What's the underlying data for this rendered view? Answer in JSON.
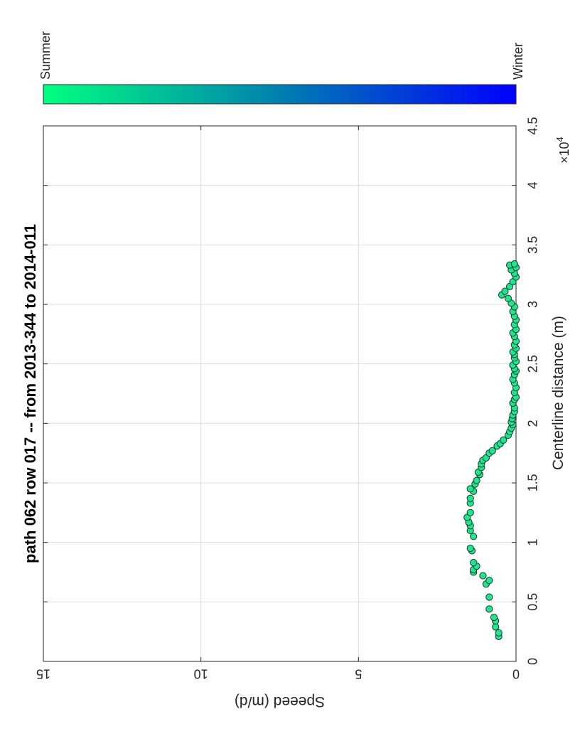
{
  "chart_data": {
    "type": "scatter",
    "orientation": "rotated 90° counter-clockwise (x axis runs bottom-to-top, y axis runs right-to-left)",
    "title": "path 062 row 017  -- from 2013-344 to 2014-011",
    "xlabel": "Centerline distance (m)",
    "ylabel": "Speeed (m/d)",
    "x_exponent_label": "×10",
    "x_exponent": "4",
    "xlim": [
      0,
      45000
    ],
    "ylim": [
      0,
      15
    ],
    "x_ticks": [
      0,
      5000,
      10000,
      15000,
      20000,
      25000,
      30000,
      35000,
      40000,
      45000
    ],
    "x_tick_labels": [
      "0",
      "0.5",
      "1",
      "1.5",
      "2",
      "2.5",
      "3",
      "3.5",
      "4",
      "4.5"
    ],
    "y_ticks": [
      0,
      5,
      10,
      15
    ],
    "y_tick_labels": [
      "0",
      "5",
      "10",
      "15"
    ],
    "grid": true,
    "marker_color": "#1fe68e",
    "marker_edge": "#1a3a2a",
    "colorbar": {
      "start_label": "Summer",
      "end_label": "Winter",
      "start_color": "#00ff80",
      "mid_color": "#0080b0",
      "end_color": "#0000ff"
    },
    "x": [
      2100,
      2400,
      2900,
      3400,
      3700,
      4400,
      5400,
      6500,
      6800,
      7200,
      7500,
      7700,
      8000,
      8300,
      9300,
      9500,
      10500,
      11000,
      11400,
      11700,
      12100,
      12500,
      13300,
      13700,
      14300,
      14500,
      14900,
      15200,
      15700,
      15900,
      16300,
      16600,
      16900,
      17100,
      17500,
      17700,
      18100,
      18300,
      18600,
      19000,
      19300,
      19600,
      19900,
      20100,
      20400,
      20700,
      21000,
      21300,
      21700,
      22000,
      22200,
      22600,
      23000,
      23400,
      23700,
      24100,
      24400,
      24600,
      24900,
      25200,
      25500,
      25800,
      26000,
      26300,
      26600,
      26900,
      27300,
      27600,
      27900,
      28300,
      28700,
      29000,
      29400,
      29800,
      30100,
      30500,
      30800,
      31100,
      31500,
      31900,
      32300,
      32600,
      32900,
      33100,
      33300,
      33400
    ],
    "y": [
      0.55,
      0.55,
      0.65,
      0.65,
      0.7,
      0.85,
      0.85,
      0.95,
      0.85,
      1.05,
      1.35,
      1.35,
      1.25,
      1.35,
      1.4,
      1.45,
      1.35,
      1.45,
      1.45,
      1.5,
      1.55,
      1.45,
      1.45,
      1.45,
      1.35,
      1.45,
      1.3,
      1.25,
      1.15,
      1.2,
      1.1,
      1.1,
      1.05,
      0.95,
      0.85,
      0.75,
      0.6,
      0.5,
      0.4,
      0.25,
      0.2,
      0.15,
      0.1,
      0.15,
      0.12,
      0.1,
      0.05,
      0.05,
      0.1,
      0.05,
      0.0,
      0.05,
      0.0,
      0.05,
      0.1,
      0.05,
      0.0,
      0.05,
      0.1,
      0.0,
      0.05,
      0.05,
      0.1,
      0.0,
      0.05,
      0.0,
      0.05,
      0.1,
      0.0,
      0.05,
      0.0,
      0.05,
      0.1,
      0.05,
      0.15,
      0.25,
      0.45,
      0.35,
      0.2,
      0.1,
      0.0,
      0.05,
      0.15,
      0.0,
      0.2,
      0.05
    ]
  }
}
